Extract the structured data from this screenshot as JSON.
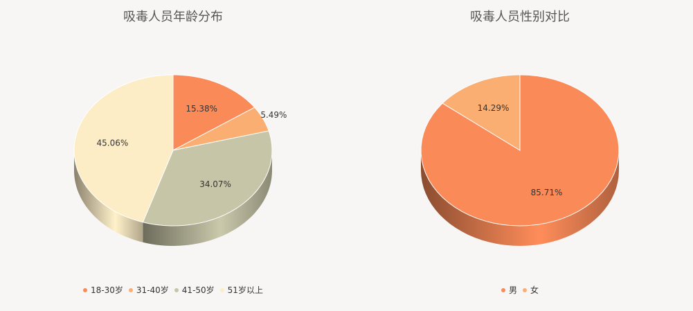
{
  "chart_data": [
    {
      "type": "pie",
      "title": "吸毒人员年龄分布",
      "categories": [
        "18-30岁",
        "31-40岁",
        "41-50岁",
        "51岁以上"
      ],
      "values": [
        15.38,
        5.49,
        34.07,
        45.06
      ],
      "value_labels": [
        "15.38%",
        "5.49%",
        "34.07%",
        "45.06%"
      ],
      "colors": [
        "#fa8a58",
        "#fbae72",
        "#c6c5a8",
        "#fdedc6"
      ],
      "legend": "bottom"
    },
    {
      "type": "pie",
      "title": "吸毒人员性别对比",
      "categories": [
        "男",
        "女"
      ],
      "values": [
        85.71,
        14.29
      ],
      "value_labels": [
        "85.71%",
        "14.29%"
      ],
      "colors": [
        "#fa8a58",
        "#fbae72"
      ],
      "legend": "bottom"
    }
  ]
}
